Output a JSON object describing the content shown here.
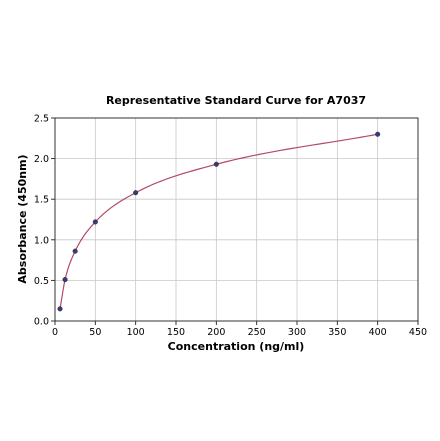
{
  "chart_data": {
    "type": "scatter",
    "title": "Representative Standard Curve for A7037",
    "xlabel": "Concentration (ng/ml)",
    "ylabel": "Absorbance (450nm)",
    "xlim": [
      0,
      450
    ],
    "ylim": [
      0,
      2.5
    ],
    "x_ticks": [
      0,
      50,
      100,
      150,
      200,
      250,
      300,
      350,
      400,
      450
    ],
    "y_ticks": [
      0.0,
      0.5,
      1.0,
      1.5,
      2.0,
      2.5
    ],
    "y_tick_labels": [
      "0.0",
      "0.5",
      "1.0",
      "1.5",
      "2.0",
      "2.5"
    ],
    "grid": true,
    "series": [
      {
        "x": [
          6.25,
          12.5,
          25,
          50,
          100,
          200,
          400
        ],
        "y": [
          0.15,
          0.51,
          0.86,
          1.22,
          1.58,
          1.93,
          2.3
        ]
      }
    ],
    "fit_curve": true,
    "colors": {
      "curve": "#b24a68",
      "points": "#3c3a6e",
      "grid": "#c8c8c8"
    }
  }
}
